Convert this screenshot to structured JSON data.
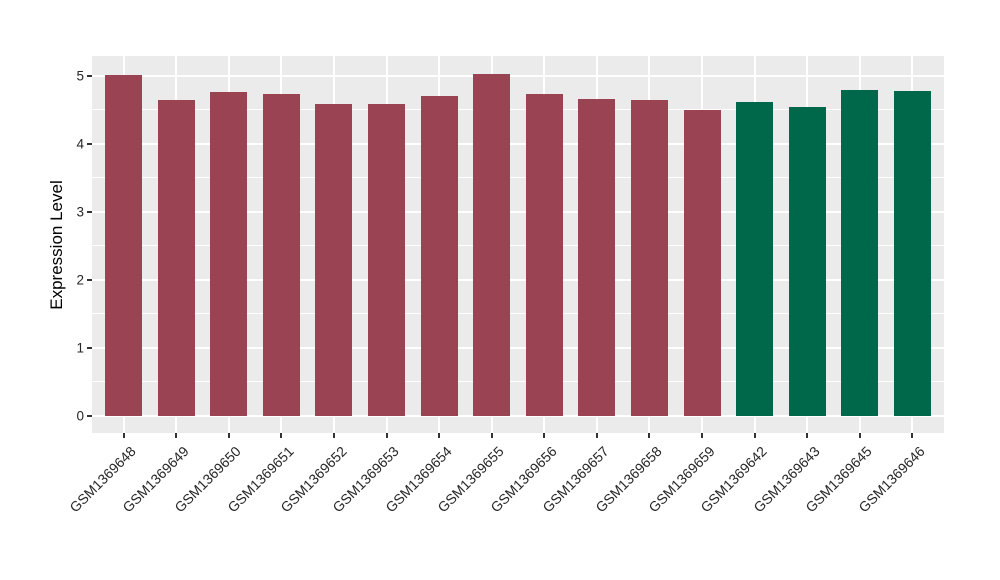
{
  "chart_data": {
    "type": "bar",
    "title": "",
    "xlabel": "",
    "ylabel": "Expression Level",
    "categories": [
      "GSM1369648",
      "GSM1369649",
      "GSM1369650",
      "GSM1369651",
      "GSM1369652",
      "GSM1369653",
      "GSM1369654",
      "GSM1369655",
      "GSM1369656",
      "GSM1369657",
      "GSM1369658",
      "GSM1369659",
      "GSM1369642",
      "GSM1369643",
      "GSM1369645",
      "GSM1369646"
    ],
    "values": [
      5.01,
      4.64,
      4.76,
      4.73,
      4.58,
      4.58,
      4.71,
      5.03,
      4.73,
      4.66,
      4.65,
      4.5,
      4.62,
      4.54,
      4.8,
      4.78
    ],
    "bar_groups": [
      0,
      0,
      0,
      0,
      0,
      0,
      0,
      0,
      0,
      0,
      0,
      0,
      1,
      1,
      1,
      1
    ],
    "group_colors": [
      "#9A4352",
      "#00684A"
    ],
    "yticks": [
      0,
      1,
      2,
      3,
      4,
      5
    ],
    "ytick_labels": [
      "0",
      "1",
      "2",
      "3",
      "4",
      "5"
    ],
    "yticks_minor": [
      0.5,
      1.5,
      2.5,
      3.5,
      4.5
    ],
    "ylim": [
      -0.26,
      5.29
    ],
    "grid": "on",
    "legend": "none",
    "panel_bg": "#EBEBEB",
    "grid_color": "#FFFFFF",
    "tick_color": "#333333",
    "text_color": "#262626",
    "x_label_rotation_deg": 45
  }
}
